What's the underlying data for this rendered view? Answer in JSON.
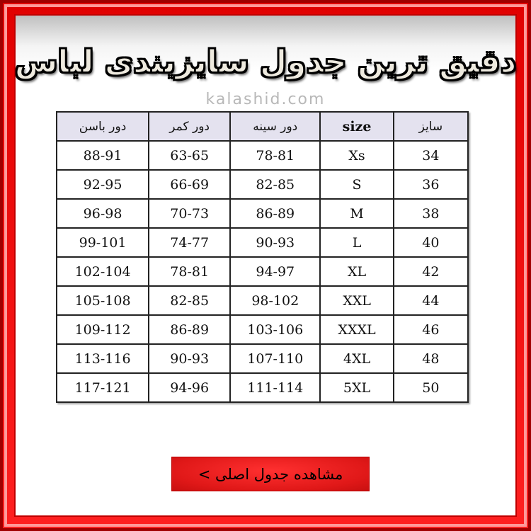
{
  "title": "دقیق ترین جدول سایزبندی لباس",
  "watermark": "kalashid.com",
  "colors": {
    "frame": "#e00000",
    "header_bg": "#e4e2ef",
    "button": "#ff2a2a"
  },
  "table": {
    "headers": [
      "سایز",
      "size",
      "دور سینه",
      "دور کمر",
      "دور باسن"
    ],
    "rows": [
      [
        "34",
        "Xs",
        "78-81",
        "63-65",
        "88-91"
      ],
      [
        "36",
        "S",
        "82-85",
        "66-69",
        "92-95"
      ],
      [
        "38",
        "M",
        "86-89",
        "70-73",
        "96-98"
      ],
      [
        "40",
        "L",
        "90-93",
        "74-77",
        "99-101"
      ],
      [
        "42",
        "XL",
        "94-97",
        "78-81",
        "102-104"
      ],
      [
        "44",
        "XXL",
        "98-102",
        "82-85",
        "105-108"
      ],
      [
        "46",
        "XXXL",
        "103-106",
        "86-89",
        "109-112"
      ],
      [
        "48",
        "4XL",
        "107-110",
        "90-93",
        "113-116"
      ],
      [
        "50",
        "5XL",
        "111-114",
        "94-96",
        "117-121"
      ]
    ]
  },
  "button": {
    "label": "مشاهده جدول اصلی >"
  }
}
